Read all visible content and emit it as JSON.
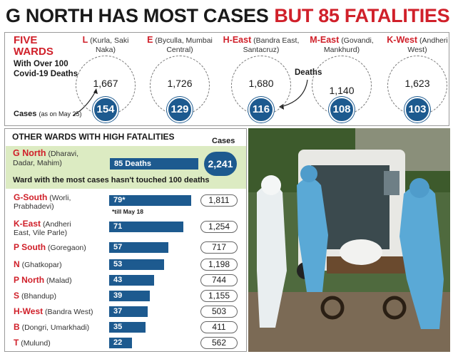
{
  "headline": {
    "part1": "G NORTH HAS MOST CASES",
    "part2": "BUT 85 FATALITIES"
  },
  "five_wards": {
    "title_line1": "FIVE",
    "title_line2": "WARDS",
    "subtitle": "With Over 100 Covid-19 Deaths",
    "cases_label": "Cases",
    "cases_note": "(as on May 25)",
    "deaths_label": "Deaths"
  },
  "other_wards": {
    "title": "OTHER WARDS WITH HIGH FATALITIES",
    "cases_header": "Cases",
    "highlight_note": "Ward with the most cases hasn't touched 100 deaths",
    "footnote": "*till May 18"
  },
  "chart_data": [
    {
      "type": "bubble",
      "categories": [
        "L",
        "E",
        "H-East",
        "M-East",
        "K-West"
      ],
      "areas": [
        "(Kurla, Saki Naka)",
        "(Byculla, Mumbai Central)",
        "(Bandra East, Santacruz)",
        "(Govandi, Mankhurd)",
        "(Andheri West)"
      ],
      "series": [
        {
          "name": "Cases",
          "values": [
            1667,
            1726,
            1680,
            1140,
            1623
          ],
          "labels": [
            "1,667",
            "1,726",
            "1,680",
            "1,140",
            "1,623"
          ]
        },
        {
          "name": "Deaths",
          "values": [
            154,
            129,
            116,
            108,
            103
          ]
        }
      ]
    },
    {
      "type": "bar",
      "orientation": "horizontal",
      "categories": [
        "G North",
        "G-South",
        "K-East",
        "P South",
        "N",
        "P North",
        "S",
        "H-West",
        "B",
        "T"
      ],
      "areas": [
        "(Dharavi, Dadar, Mahim)",
        "(Worli, Prabhadevi)",
        "(Andheri East, Vile Parle)",
        "(Goregaon)",
        "(Ghatkopar)",
        "(Malad)",
        "(Bhandup)",
        "(Bandra West)",
        "(Dongri, Umarkhadi)",
        "(Mulund)"
      ],
      "series": [
        {
          "name": "Deaths",
          "values": [
            85,
            79,
            71,
            57,
            53,
            43,
            39,
            37,
            35,
            22
          ],
          "labels": [
            "85 Deaths",
            "79*",
            "71",
            "57",
            "53",
            "43",
            "39",
            "37",
            "35",
            "22"
          ]
        },
        {
          "name": "Cases",
          "values": [
            2241,
            1811,
            1254,
            717,
            1198,
            744,
            1155,
            503,
            411,
            562
          ],
          "labels": [
            "2,241",
            "1,811",
            "1,254",
            "717",
            "1,198",
            "744",
            "1,155",
            "503",
            "411",
            "562"
          ]
        }
      ]
    }
  ],
  "colors": {
    "accent_red": "#d0202a",
    "bar_blue": "#1d5a8f",
    "highlight_green": "#dcebc2"
  },
  "photo": {
    "icon": "ambulance-ppe-workers-photo"
  }
}
